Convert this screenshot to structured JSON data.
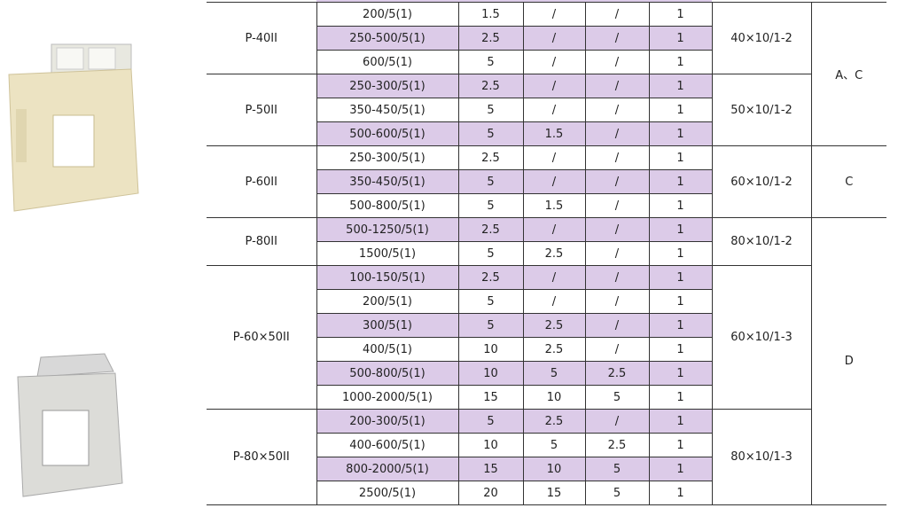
{
  "colors": {
    "shade": "#dccbe8",
    "border": "#333333"
  },
  "groups": [
    {
      "model": "P-40II",
      "busbar": "40×10/1-2",
      "rows": [
        [
          "200/5(1)",
          "1.5",
          "/",
          "/",
          "1"
        ],
        [
          "250-500/5(1)",
          "2.5",
          "/",
          "/",
          "1"
        ],
        [
          "600/5(1)",
          "5",
          "/",
          "/",
          "1"
        ]
      ]
    },
    {
      "model": "P-50II",
      "busbar": "50×10/1-2",
      "rows": [
        [
          "250-300/5(1)",
          "2.5",
          "/",
          "/",
          "1"
        ],
        [
          "350-450/5(1)",
          "5",
          "/",
          "/",
          "1"
        ],
        [
          "500-600/5(1)",
          "5",
          "1.5",
          "/",
          "1"
        ]
      ]
    },
    {
      "model": "P-60II",
      "busbar": "60×10/1-2",
      "rows": [
        [
          "250-300/5(1)",
          "2.5",
          "/",
          "/",
          "1"
        ],
        [
          "350-450/5(1)",
          "5",
          "/",
          "/",
          "1"
        ],
        [
          "500-800/5(1)",
          "5",
          "1.5",
          "/",
          "1"
        ]
      ]
    },
    {
      "model": "P-80II",
      "busbar": "80×10/1-2",
      "rows": [
        [
          "500-1250/5(1)",
          "2.5",
          "/",
          "/",
          "1"
        ],
        [
          "1500/5(1)",
          "5",
          "2.5",
          "/",
          "1"
        ]
      ]
    },
    {
      "model": "P-60×50II",
      "busbar": "60×10/1-3",
      "rows": [
        [
          "100-150/5(1)",
          "2.5",
          "/",
          "/",
          "1"
        ],
        [
          "200/5(1)",
          "5",
          "/",
          "/",
          "1"
        ],
        [
          "300/5(1)",
          "5",
          "2.5",
          "/",
          "1"
        ],
        [
          "400/5(1)",
          "10",
          "2.5",
          "/",
          "1"
        ],
        [
          "500-800/5(1)",
          "10",
          "5",
          "2.5",
          "1"
        ],
        [
          "1000-2000/5(1)",
          "15",
          "10",
          "5",
          "1"
        ]
      ]
    },
    {
      "model": "P-80×50II",
      "busbar": "80×10/1-3",
      "rows": [
        [
          "200-300/5(1)",
          "5",
          "2.5",
          "/",
          "1"
        ],
        [
          "400-600/5(1)",
          "10",
          "5",
          "2.5",
          "1"
        ],
        [
          "800-2000/5(1)",
          "15",
          "10",
          "5",
          "1"
        ],
        [
          "2500/5(1)",
          "20",
          "15",
          "5",
          "1"
        ]
      ]
    }
  ],
  "types": [
    {
      "label": "A、C",
      "span": 6
    },
    {
      "label": "C",
      "span": 3
    },
    {
      "label": "D",
      "span": 12
    }
  ]
}
